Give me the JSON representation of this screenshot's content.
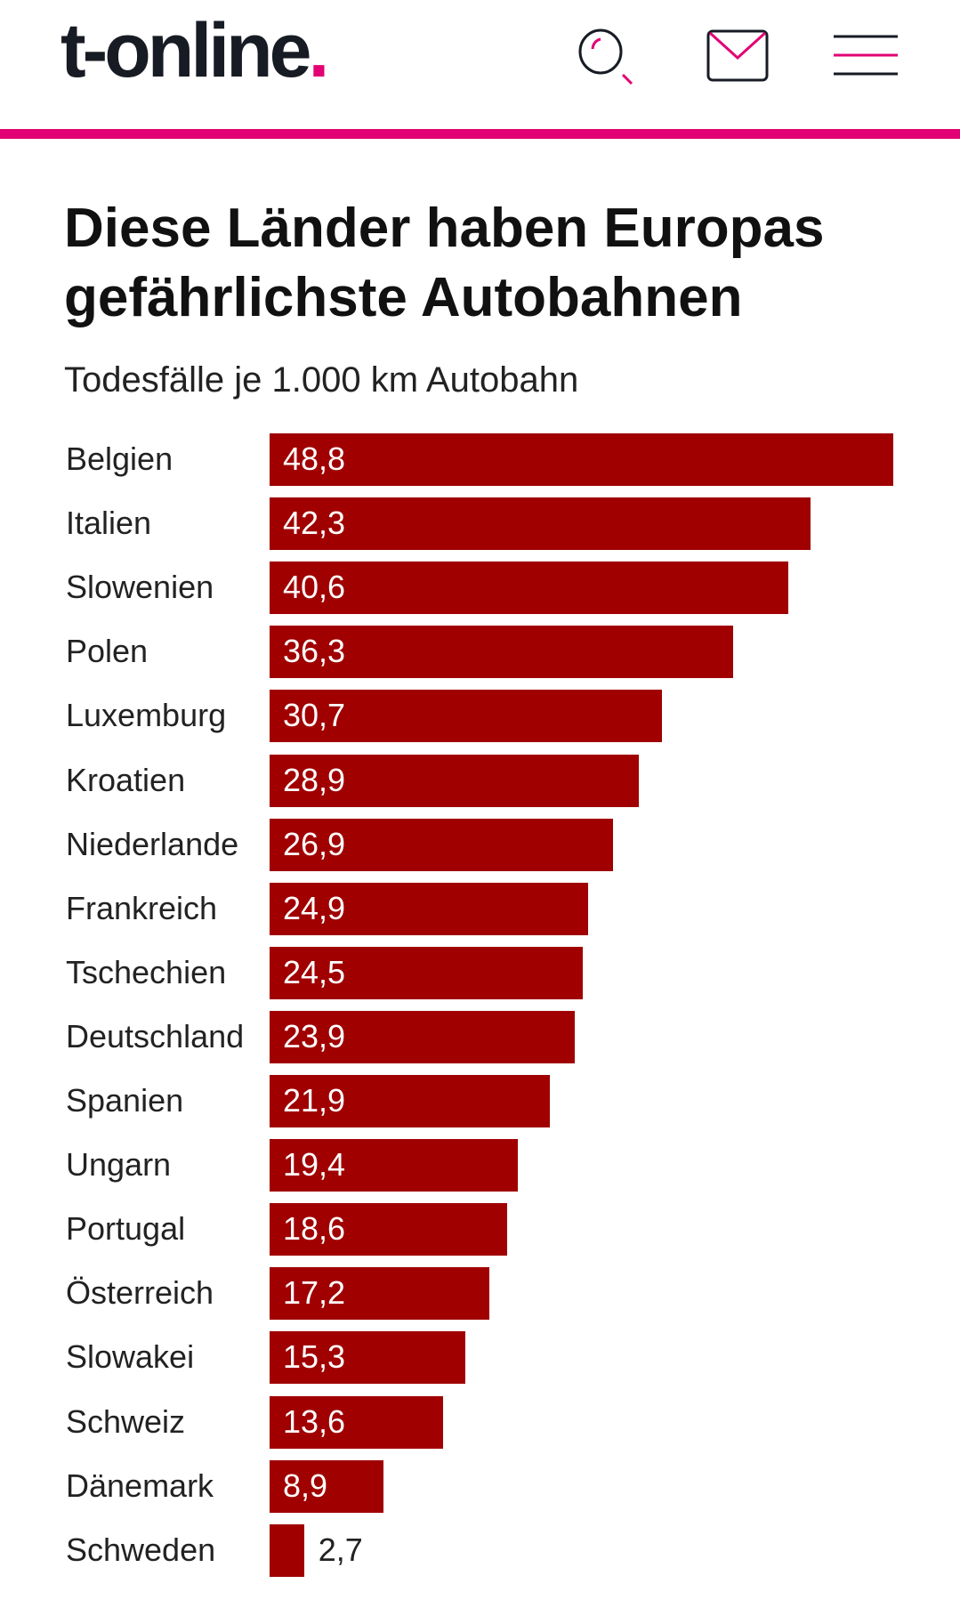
{
  "header": {
    "logo_text": "t-online",
    "logo_dot": ".",
    "icons": [
      "search-icon",
      "mail-icon",
      "menu-icon"
    ],
    "accent_color": "#e20074"
  },
  "chart_data": {
    "type": "bar",
    "orientation": "horizontal",
    "title": "Diese Länder haben Europas gefährlichste Autobahnen",
    "subtitle": "Todesfälle je 1.000 km Autobahn",
    "categories": [
      "Belgien",
      "Italien",
      "Slowenien",
      "Polen",
      "Luxemburg",
      "Kroatien",
      "Niederlande",
      "Frankreich",
      "Tschechien",
      "Deutschland",
      "Spanien",
      "Ungarn",
      "Portugal",
      "Österreich",
      "Slowakei",
      "Schweiz",
      "Dänemark",
      "Schweden"
    ],
    "values": [
      48.8,
      42.3,
      40.6,
      36.3,
      30.7,
      28.9,
      26.9,
      24.9,
      24.5,
      23.9,
      21.9,
      19.4,
      18.6,
      17.2,
      15.3,
      13.6,
      8.9,
      2.7
    ],
    "value_labels": [
      "48,8",
      "42,3",
      "40,6",
      "36,3",
      "30,7",
      "28,9",
      "26,9",
      "24,9",
      "24,5",
      "23,9",
      "21,9",
      "19,4",
      "18,6",
      "17,2",
      "15,3",
      "13,6",
      "8,9",
      "2,7"
    ],
    "bar_color": "#a00000",
    "xlim": [
      0,
      48.8
    ],
    "grid": false,
    "legend": "none"
  }
}
